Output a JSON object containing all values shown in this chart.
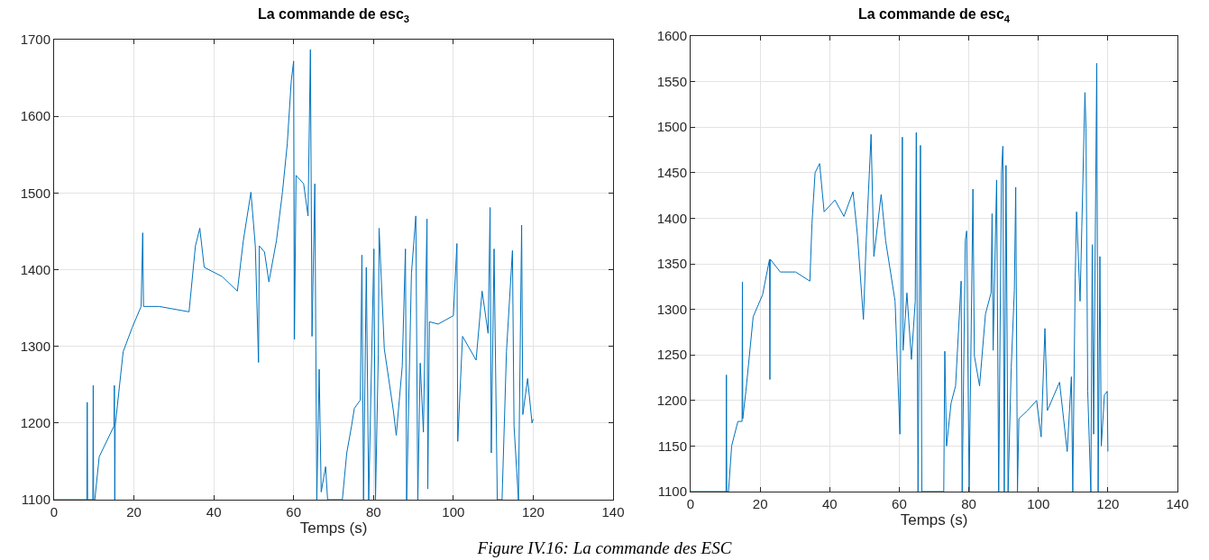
{
  "chart_data": [
    {
      "type": "line",
      "title": "La commande de esc$_{3}$",
      "xlabel": "Temps (s)",
      "xlim": [
        0,
        140
      ],
      "xticks": [
        0,
        20,
        40,
        60,
        80,
        100,
        120,
        140
      ],
      "ylim": [
        1100,
        1700
      ],
      "yticks": [
        1100,
        1200,
        1300,
        1400,
        1500,
        1600,
        1700
      ],
      "grid": true,
      "marker": "none",
      "line_style": "solid",
      "annotations": [
        "Figure IV.16: La commande des ESC"
      ],
      "x": [
        0,
        8.2,
        8.3,
        8.4,
        9.7,
        9.8,
        9.9,
        10.2,
        11.3,
        15,
        15.1,
        15.2,
        15.3,
        17.3,
        19.6,
        21.8,
        22.2,
        22.4,
        26.3,
        33.8,
        35.4,
        36.5,
        37.6,
        42.1,
        45.9,
        47.4,
        49.3,
        50.4,
        51.2,
        51.4,
        52.7,
        53.8,
        55.7,
        57.2,
        58.4,
        59.4,
        60,
        60.2,
        60.6,
        62.5,
        63.6,
        64.2,
        64.6,
        65.3,
        65.8,
        66.4,
        66.9,
        68,
        68.5,
        72.2,
        73.3,
        74.5,
        75.2,
        76.7,
        77.1,
        77.5,
        78.2,
        78.8,
        80.1,
        80.5,
        81.2,
        81.4,
        82.7,
        85,
        85.7,
        87.2,
        88,
        88.3,
        89.5,
        90.6,
        91.1,
        91.7,
        92.5,
        93.4,
        93.6,
        94,
        96.2,
        100,
        100.9,
        101.1,
        102.3,
        105.7,
        107.2,
        108.7,
        109.2,
        109.5,
        110.2,
        111,
        112.2,
        113.3,
        114.8,
        115.2,
        116.3,
        117.1,
        117.4,
        118.6,
        119.7,
        120
      ],
      "series": [
        {
          "color": "#0072bd",
          "values": [
            1100,
            1100,
            1227,
            1100,
            1100,
            1249,
            1100,
            1100,
            1156,
            1196,
            1249,
            1100,
            1196,
            1293,
            1325,
            1352,
            1448,
            1352,
            1352,
            1345,
            1431,
            1454,
            1403,
            1391,
            1372,
            1438,
            1501,
            1431,
            1279,
            1431,
            1423,
            1384,
            1438,
            1501,
            1564,
            1646,
            1672,
            1309,
            1523,
            1512,
            1470,
            1687,
            1313,
            1512,
            1100,
            1270,
            1110,
            1143,
            1100,
            1100,
            1161,
            1196,
            1219,
            1230,
            1419,
            1100,
            1403,
            1100,
            1427,
            1100,
            1290,
            1454,
            1297,
            1215,
            1184,
            1274,
            1427,
            1100,
            1395,
            1470,
            1100,
            1278,
            1188,
            1466,
            1114,
            1332,
            1329,
            1340,
            1434,
            1176,
            1313,
            1282,
            1372,
            1317,
            1481,
            1161,
            1427,
            1100,
            1100,
            1293,
            1425,
            1196,
            1100,
            1458,
            1211,
            1258,
            1200,
            1205
          ]
        }
      ]
    },
    {
      "type": "line",
      "title": "La commande de esc$_{4}$",
      "xlabel": "Temps (s)",
      "xlim": [
        0,
        140
      ],
      "xticks": [
        0,
        20,
        40,
        60,
        80,
        100,
        120,
        140
      ],
      "ylim": [
        1100,
        1600
      ],
      "yticks": [
        1100,
        1150,
        1200,
        1250,
        1300,
        1350,
        1400,
        1450,
        1500,
        1550,
        1600
      ],
      "grid": true,
      "marker": "none",
      "line_style": "solid",
      "x": [
        0,
        10.2,
        10.3,
        10.4,
        10.9,
        11.8,
        13.6,
        14.8,
        14.9,
        15,
        15.9,
        18,
        20.7,
        22.7,
        22.8,
        22.9,
        25.8,
        30.2,
        34.3,
        34.9,
        35.8,
        37.1,
        38.4,
        41.5,
        44.1,
        46.7,
        48,
        49.7,
        50.5,
        51.9,
        52.7,
        54.8,
        56.1,
        58.8,
        59.6,
        60.2,
        60.9,
        61.1,
        62.2,
        63.5,
        64.6,
        64.9,
        65.4,
        66.1,
        66.5,
        72.8,
        73.1,
        73.6,
        74.9,
        76.2,
        77.8,
        78.1,
        79,
        79.4,
        80.1,
        81.2,
        81.6,
        83.1,
        84.8,
        86.4,
        86.7,
        87,
        88,
        88.6,
        89.4,
        89.8,
        90.2,
        90.7,
        91.3,
        92.2,
        93.1,
        93.5,
        94,
        94.4,
        96.9,
        99.5,
        100.8,
        101.9,
        102.6,
        106.1,
        108.3,
        109.5,
        109.9,
        110.6,
        111,
        112,
        112.5,
        113.4,
        113.7,
        114.2,
        115.1,
        115.5,
        115.9,
        116.8,
        117.2,
        117.7,
        118.1,
        119,
        119.8,
        120
      ],
      "series": [
        {
          "color": "#0072bd",
          "values": [
            1100,
            1100,
            1228,
            1100,
            1100,
            1150,
            1177,
            1177,
            1330,
            1180,
            1210,
            1292,
            1316,
            1355,
            1223,
            1355,
            1341,
            1341,
            1331,
            1394,
            1450,
            1460,
            1407,
            1420,
            1402,
            1429,
            1381,
            1289,
            1375,
            1492,
            1358,
            1426,
            1375,
            1309,
            1226,
            1163,
            1489,
            1255,
            1318,
            1245,
            1309,
            1494,
            1100,
            1480,
            1100,
            1100,
            1254,
            1150,
            1197,
            1216,
            1331,
            1100,
            1376,
            1386,
            1100,
            1432,
            1249,
            1216,
            1295,
            1318,
            1405,
            1255,
            1442,
            1100,
            1450,
            1479,
            1100,
            1458,
            1100,
            1236,
            1321,
            1434,
            1100,
            1180,
            1189,
            1200,
            1160,
            1279,
            1189,
            1220,
            1144,
            1226,
            1100,
            1335,
            1407,
            1309,
            1390,
            1538,
            1499,
            1210,
            1100,
            1371,
            1163,
            1570,
            1100,
            1358,
            1150,
            1206,
            1210,
            1144
          ]
        }
      ]
    }
  ]
}
